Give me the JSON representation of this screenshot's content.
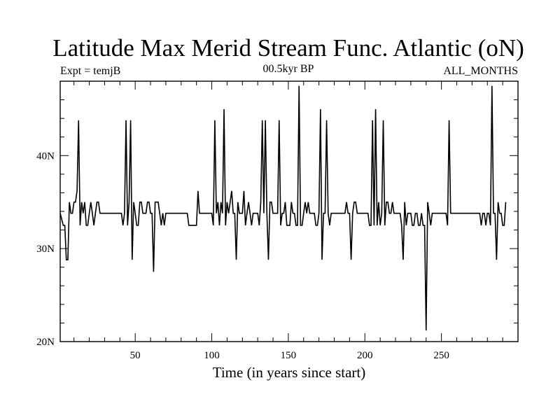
{
  "chart_data": {
    "type": "line",
    "title": "Latitude Max Merid Stream Func. Atlantic (oN)",
    "subtitle_left": "Expt = temjB",
    "subtitle_center": "00.5kyr BP",
    "subtitle_right": "ALL_MONTHS",
    "xlabel": "Time (in years since start)",
    "ylabel": "",
    "xlim": [
      1,
      300
    ],
    "ylim": [
      20,
      48
    ],
    "x_major_ticks": [
      50,
      100,
      150,
      200,
      250
    ],
    "x_tick_labels": [
      "50",
      "100",
      "150",
      "200",
      "250"
    ],
    "y_major_ticks": [
      20,
      30,
      40
    ],
    "y_tick_labels": [
      "20N",
      "30N",
      "40N"
    ],
    "series": [
      {
        "color": "#000000",
        "points": [
          [
            1,
            33.8
          ],
          [
            3,
            32.5
          ],
          [
            4,
            32.5
          ],
          [
            5,
            28.8
          ],
          [
            6,
            28.8
          ],
          [
            7,
            35.0
          ],
          [
            8,
            33.8
          ],
          [
            9,
            33.8
          ],
          [
            10,
            35.0
          ],
          [
            11,
            35.0
          ],
          [
            12,
            36.2
          ],
          [
            13,
            43.8
          ],
          [
            14,
            32.5
          ],
          [
            15,
            35.0
          ],
          [
            16,
            33.8
          ],
          [
            17,
            35.0
          ],
          [
            18,
            32.5
          ],
          [
            19,
            32.5
          ],
          [
            20,
            33.8
          ],
          [
            21,
            35.0
          ],
          [
            22,
            33.8
          ],
          [
            23,
            32.5
          ],
          [
            24,
            33.8
          ],
          [
            25,
            35.0
          ],
          [
            26,
            35.0
          ],
          [
            27,
            33.8
          ],
          [
            30,
            33.8
          ],
          [
            35,
            33.8
          ],
          [
            40,
            33.8
          ],
          [
            41,
            33.8
          ],
          [
            42,
            32.5
          ],
          [
            43,
            33.8
          ],
          [
            44,
            43.8
          ],
          [
            45,
            32.5
          ],
          [
            46,
            35.0
          ],
          [
            47,
            43.8
          ],
          [
            48,
            28.8
          ],
          [
            49,
            35.0
          ],
          [
            50,
            33.8
          ],
          [
            51,
            32.5
          ],
          [
            52,
            32.5
          ],
          [
            53,
            35.0
          ],
          [
            54,
            35.0
          ],
          [
            55,
            33.8
          ],
          [
            56,
            33.8
          ],
          [
            57,
            33.8
          ],
          [
            58,
            35.0
          ],
          [
            59,
            35.0
          ],
          [
            60,
            33.8
          ],
          [
            61,
            33.8
          ],
          [
            62,
            27.5
          ],
          [
            63,
            35.0
          ],
          [
            64,
            35.0
          ],
          [
            65,
            35.0
          ],
          [
            66,
            33.8
          ],
          [
            67,
            32.5
          ],
          [
            68,
            33.8
          ],
          [
            69,
            32.5
          ],
          [
            70,
            33.8
          ],
          [
            72,
            33.8
          ],
          [
            80,
            33.8
          ],
          [
            84,
            33.8
          ],
          [
            85,
            32.5
          ],
          [
            90,
            32.5
          ],
          [
            91,
            36.2
          ],
          [
            92,
            33.8
          ],
          [
            93,
            33.8
          ],
          [
            100,
            33.8
          ],
          [
            101,
            32.5
          ],
          [
            102,
            43.8
          ],
          [
            103,
            33.8
          ],
          [
            104,
            35.0
          ],
          [
            105,
            32.5
          ],
          [
            106,
            35.0
          ],
          [
            107,
            33.8
          ],
          [
            108,
            45.0
          ],
          [
            109,
            32.5
          ],
          [
            110,
            35.0
          ],
          [
            111,
            33.8
          ],
          [
            112,
            35.0
          ],
          [
            113,
            36.2
          ],
          [
            114,
            33.8
          ],
          [
            115,
            33.8
          ],
          [
            116,
            28.8
          ],
          [
            117,
            35.0
          ],
          [
            118,
            33.8
          ],
          [
            119,
            33.8
          ],
          [
            120,
            33.8
          ],
          [
            121,
            36.2
          ],
          [
            122,
            32.5
          ],
          [
            123,
            33.8
          ],
          [
            124,
            35.0
          ],
          [
            125,
            33.8
          ],
          [
            126,
            32.5
          ],
          [
            127,
            33.8
          ],
          [
            128,
            33.8
          ],
          [
            130,
            33.8
          ],
          [
            131,
            32.5
          ],
          [
            132,
            35.0
          ],
          [
            133,
            43.8
          ],
          [
            134,
            33.8
          ],
          [
            135,
            43.8
          ],
          [
            136,
            33.8
          ],
          [
            137,
            28.8
          ],
          [
            138,
            35.0
          ],
          [
            139,
            35.0
          ],
          [
            140,
            33.8
          ],
          [
            141,
            33.8
          ],
          [
            142,
            33.8
          ],
          [
            143,
            33.8
          ],
          [
            144,
            43.8
          ],
          [
            145,
            32.5
          ],
          [
            146,
            33.8
          ],
          [
            147,
            33.8
          ],
          [
            148,
            35.0
          ],
          [
            149,
            32.5
          ],
          [
            150,
            32.5
          ],
          [
            151,
            32.5
          ],
          [
            152,
            35.0
          ],
          [
            153,
            33.8
          ],
          [
            154,
            33.8
          ],
          [
            155,
            32.5
          ],
          [
            156,
            32.5
          ],
          [
            157,
            47.5
          ],
          [
            158,
            32.5
          ],
          [
            159,
            32.5
          ],
          [
            160,
            33.8
          ],
          [
            161,
            35.0
          ],
          [
            162,
            33.8
          ],
          [
            163,
            35.0
          ],
          [
            164,
            33.8
          ],
          [
            165,
            33.8
          ],
          [
            167,
            33.8
          ],
          [
            168,
            32.5
          ],
          [
            169,
            32.5
          ],
          [
            170,
            33.8
          ],
          [
            171,
            45.0
          ],
          [
            172,
            28.8
          ],
          [
            173,
            33.8
          ],
          [
            174,
            33.8
          ],
          [
            175,
            43.8
          ],
          [
            176,
            33.8
          ],
          [
            177,
            32.5
          ],
          [
            178,
            33.8
          ],
          [
            179,
            33.8
          ],
          [
            183,
            33.8
          ],
          [
            187,
            33.8
          ],
          [
            188,
            35.0
          ],
          [
            189,
            33.8
          ],
          [
            190,
            33.8
          ],
          [
            191,
            28.8
          ],
          [
            192,
            33.8
          ],
          [
            193,
            35.0
          ],
          [
            194,
            35.0
          ],
          [
            195,
            33.8
          ],
          [
            200,
            33.8
          ],
          [
            201,
            33.8
          ],
          [
            202,
            33.8
          ],
          [
            203,
            32.5
          ],
          [
            204,
            32.5
          ],
          [
            205,
            43.8
          ],
          [
            206,
            32.5
          ],
          [
            207,
            45.0
          ],
          [
            208,
            32.5
          ],
          [
            209,
            35.0
          ],
          [
            210,
            32.5
          ],
          [
            211,
            33.8
          ],
          [
            212,
            43.8
          ],
          [
            213,
            32.5
          ],
          [
            214,
            35.0
          ],
          [
            215,
            35.0
          ],
          [
            216,
            33.8
          ],
          [
            217,
            33.8
          ],
          [
            218,
            35.0
          ],
          [
            219,
            33.8
          ],
          [
            220,
            33.8
          ],
          [
            223,
            33.8
          ],
          [
            224,
            32.5
          ],
          [
            225,
            28.8
          ],
          [
            226,
            35.0
          ],
          [
            227,
            32.5
          ],
          [
            228,
            33.8
          ],
          [
            229,
            33.8
          ],
          [
            230,
            33.8
          ],
          [
            231,
            32.5
          ],
          [
            232,
            32.5
          ],
          [
            233,
            33.8
          ],
          [
            234,
            33.8
          ],
          [
            235,
            32.5
          ],
          [
            236,
            32.5
          ],
          [
            237,
            33.8
          ],
          [
            238,
            32.5
          ],
          [
            239,
            32.5
          ],
          [
            240,
            21.2
          ],
          [
            241,
            35.0
          ],
          [
            242,
            33.8
          ],
          [
            243,
            32.5
          ],
          [
            244,
            33.8
          ],
          [
            245,
            33.8
          ],
          [
            246,
            33.8
          ],
          [
            250,
            33.8
          ],
          [
            253,
            33.8
          ],
          [
            254,
            32.5
          ],
          [
            255,
            43.8
          ],
          [
            256,
            33.8
          ],
          [
            258,
            33.8
          ],
          [
            265,
            33.8
          ],
          [
            272,
            33.8
          ],
          [
            275,
            33.8
          ],
          [
            276,
            32.5
          ],
          [
            277,
            33.8
          ],
          [
            278,
            33.8
          ],
          [
            279,
            32.5
          ],
          [
            280,
            33.8
          ],
          [
            281,
            33.8
          ],
          [
            282,
            32.5
          ],
          [
            283,
            47.5
          ],
          [
            284,
            33.8
          ],
          [
            285,
            33.8
          ],
          [
            286,
            28.8
          ],
          [
            287,
            35.0
          ],
          [
            288,
            33.8
          ],
          [
            289,
            33.8
          ],
          [
            290,
            32.5
          ],
          [
            291,
            32.5
          ],
          [
            292,
            35.0
          ]
        ]
      }
    ]
  }
}
